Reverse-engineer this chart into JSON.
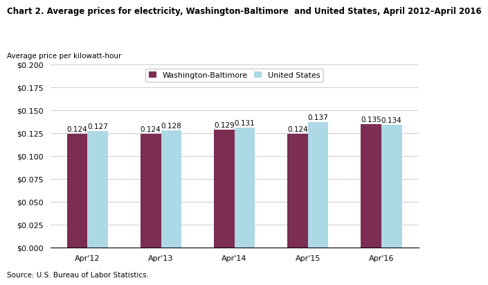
{
  "title": "Chart 2. Average prices for electricity, Washington-Baltimore  and United States, April 2012–April 2016",
  "ylabel": "Average price per kilowatt-hour",
  "categories": [
    "Apr'12",
    "Apr'13",
    "Apr'14",
    "Apr'15",
    "Apr'16"
  ],
  "wb_values": [
    0.124,
    0.124,
    0.129,
    0.124,
    0.135
  ],
  "us_values": [
    0.127,
    0.128,
    0.131,
    0.137,
    0.134
  ],
  "wb_color": "#7B2D52",
  "us_color": "#ADD8E6",
  "wb_label": "Washington-Baltimore",
  "us_label": "United States",
  "ylim": [
    0,
    0.2
  ],
  "yticks": [
    0.0,
    0.025,
    0.05,
    0.075,
    0.1,
    0.125,
    0.15,
    0.175,
    0.2
  ],
  "source": "Source: U.S. Bureau of Labor Statistics.",
  "bar_width": 0.28,
  "title_fontsize": 8.5,
  "axis_label_fontsize": 7.5,
  "tick_fontsize": 8,
  "legend_fontsize": 8,
  "annotation_fontsize": 7.5
}
